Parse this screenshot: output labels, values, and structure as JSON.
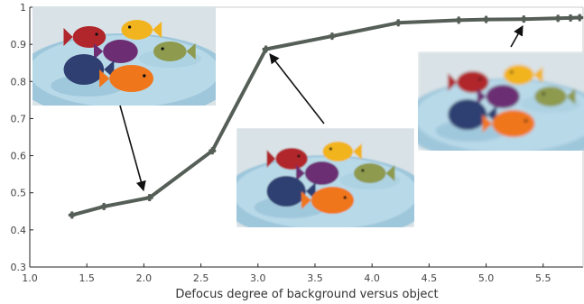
{
  "chart_data": {
    "type": "line",
    "title": "",
    "xlabel": "Defocus degree of background versus object",
    "ylabel": "",
    "xlim": [
      1.0,
      5.85
    ],
    "ylim": [
      0.3,
      1.0
    ],
    "xticks": [
      "1.0",
      "1.5",
      "2.0",
      "2.5",
      "3.0",
      "3.5",
      "4.0",
      "4.5",
      "5.0",
      "5.5"
    ],
    "yticks": [
      "0.3",
      "0.4",
      "0.5",
      "0.6",
      "0.7",
      "0.8",
      "0.9",
      "1"
    ],
    "grid": false,
    "series": [
      {
        "color": "#555e57",
        "x": [
          1.37,
          1.65,
          2.05,
          2.6,
          3.07,
          3.65,
          4.23,
          4.76,
          5.0,
          5.33,
          5.63,
          5.74,
          5.82
        ],
        "y": [
          0.44,
          0.463,
          0.487,
          0.613,
          0.887,
          0.922,
          0.958,
          0.965,
          0.967,
          0.968,
          0.97,
          0.971,
          0.972
        ]
      }
    ],
    "inset_images": [
      {
        "subject": "crocheted toy fish on blue knitted blanket, sharp background",
        "points_to": {
          "x": 2.05,
          "y": 0.487
        }
      },
      {
        "subject": "crocheted toy fish on blue knitted blanket, moderately blurred background",
        "points_to": {
          "x": 3.07,
          "y": 0.887
        }
      },
      {
        "subject": "crocheted toy fish on blue knitted blanket, strongly blurred background",
        "points_to": {
          "x": 5.33,
          "y": 0.968
        }
      }
    ]
  }
}
